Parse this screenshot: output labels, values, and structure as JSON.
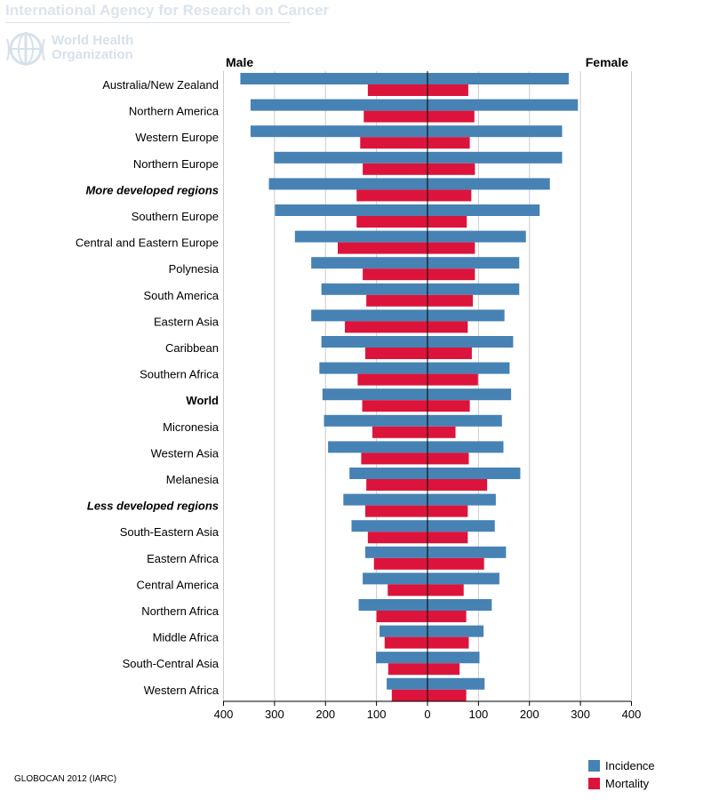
{
  "header": {
    "agency": "International Agency for Research on Cancer",
    "who_line1": "World Health",
    "who_line2": "Organization"
  },
  "source": "GLOBOCAN 2012 (IARC)",
  "legend": {
    "incidence": "Incidence",
    "mortality": "Mortality"
  },
  "colors": {
    "incidence": "#4682b4",
    "mortality": "#dc143c",
    "grid": "#cccccc",
    "axis": "#000000"
  },
  "chart_data": {
    "type": "bar",
    "orientation": "horizontal-population-pyramid",
    "left_label": "Male",
    "right_label": "Female",
    "xlim": [
      -400,
      400
    ],
    "xticks": [
      -400,
      -300,
      -200,
      -100,
      0,
      100,
      200,
      300,
      400
    ],
    "xtick_labels": [
      "400",
      "300",
      "200",
      "100",
      "0",
      "100",
      "200",
      "300",
      "400"
    ],
    "categories": [
      {
        "label": "Australia/New Zealand",
        "emphasis": "normal"
      },
      {
        "label": "Northern America",
        "emphasis": "normal"
      },
      {
        "label": "Western Europe",
        "emphasis": "normal"
      },
      {
        "label": "Northern Europe",
        "emphasis": "normal"
      },
      {
        "label": "More developed regions",
        "emphasis": "bold-italic"
      },
      {
        "label": "Southern Europe",
        "emphasis": "normal"
      },
      {
        "label": "Central and Eastern Europe",
        "emphasis": "normal"
      },
      {
        "label": "Polynesia",
        "emphasis": "normal"
      },
      {
        "label": "South America",
        "emphasis": "normal"
      },
      {
        "label": "Eastern Asia",
        "emphasis": "normal"
      },
      {
        "label": "Caribbean",
        "emphasis": "normal"
      },
      {
        "label": "Southern Africa",
        "emphasis": "normal"
      },
      {
        "label": "World",
        "emphasis": "bold"
      },
      {
        "label": "Micronesia",
        "emphasis": "normal"
      },
      {
        "label": "Western Asia",
        "emphasis": "normal"
      },
      {
        "label": "Melanesia",
        "emphasis": "normal"
      },
      {
        "label": "Less developed regions",
        "emphasis": "bold-italic"
      },
      {
        "label": "South-Eastern Asia",
        "emphasis": "normal"
      },
      {
        "label": "Eastern Africa",
        "emphasis": "normal"
      },
      {
        "label": "Central America",
        "emphasis": "normal"
      },
      {
        "label": "Northern Africa",
        "emphasis": "normal"
      },
      {
        "label": "Middle Africa",
        "emphasis": "normal"
      },
      {
        "label": "South-Central Asia",
        "emphasis": "normal"
      },
      {
        "label": "Western Africa",
        "emphasis": "normal"
      }
    ],
    "series": [
      {
        "name": "Male Incidence",
        "side": "male",
        "kind": "incidence",
        "values": [
          367,
          347,
          347,
          301,
          311,
          299,
          260,
          228,
          208,
          228,
          208,
          212,
          206,
          203,
          195,
          153,
          165,
          149,
          122,
          127,
          135,
          94,
          101,
          80
        ]
      },
      {
        "name": "Male Mortality",
        "side": "male",
        "kind": "mortality",
        "values": [
          117,
          125,
          132,
          127,
          139,
          139,
          176,
          127,
          120,
          162,
          122,
          137,
          128,
          108,
          130,
          120,
          122,
          117,
          105,
          78,
          100,
          84,
          77,
          70
        ]
      },
      {
        "name": "Female Incidence",
        "side": "female",
        "kind": "incidence",
        "values": [
          277,
          295,
          264,
          264,
          240,
          220,
          193,
          180,
          180,
          151,
          168,
          161,
          164,
          146,
          149,
          182,
          134,
          132,
          154,
          141,
          126,
          110,
          102,
          112
        ]
      },
      {
        "name": "Female Mortality",
        "side": "female",
        "kind": "mortality",
        "values": [
          80,
          92,
          83,
          93,
          86,
          77,
          93,
          93,
          89,
          79,
          87,
          99,
          83,
          55,
          81,
          117,
          79,
          79,
          111,
          71,
          76,
          81,
          63,
          76
        ]
      }
    ]
  }
}
